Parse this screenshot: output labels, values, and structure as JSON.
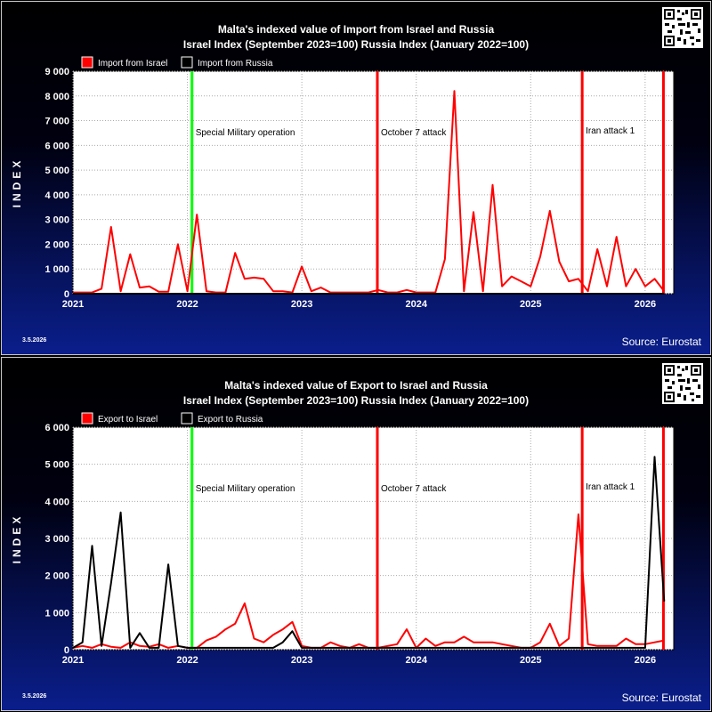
{
  "panels": [
    {
      "title_line1": "Malta's indexed value of Import from Israel and Russia",
      "title_line2": "Israel Index (September 2023=100) Russia Index (January 2022=100)",
      "date": "3.5.2026",
      "source": "Source: Eurostat"
    },
    {
      "title_line1": "Malta's indexed value of Export to Israel and Russia",
      "title_line2": "Israel Index (September 2023=100) Russia Index (January 2022=100)",
      "date": "3.5.2026",
      "source": "Source: Eurostat"
    }
  ],
  "chart_data": [
    {
      "type": "line",
      "title": "Malta's indexed value of Import from Israel and Russia",
      "subtitle": "Israel Index (September 2023=100) Russia Index (January 2022=100)",
      "ylabel": "INDEX",
      "xlabel": "",
      "xlim": [
        2021.0,
        2026.25
      ],
      "ylim": [
        0,
        9000
      ],
      "yticks": [
        0,
        1000,
        2000,
        3000,
        4000,
        5000,
        6000,
        7000,
        8000,
        9000
      ],
      "yticklabels": [
        "0",
        "1 000",
        "2 000",
        "3 000",
        "4 000",
        "5 000",
        "6 000",
        "7 000",
        "8 000",
        "9 000"
      ],
      "xticks": [
        2021,
        2022,
        2023,
        2024,
        2025,
        2026
      ],
      "xticklabels": [
        "2021",
        "2022",
        "2023",
        "2024",
        "2025",
        "2026"
      ],
      "grid": true,
      "legend_placement": "top-left",
      "series": [
        {
          "name": "Import from Israel",
          "color": "#ff0000",
          "x": [
            2021.0,
            2021.083,
            2021.167,
            2021.25,
            2021.333,
            2021.417,
            2021.5,
            2021.583,
            2021.667,
            2021.75,
            2021.833,
            2021.917,
            2022.0,
            2022.083,
            2022.167,
            2022.25,
            2022.333,
            2022.417,
            2022.5,
            2022.583,
            2022.667,
            2022.75,
            2022.833,
            2022.917,
            2023.0,
            2023.083,
            2023.167,
            2023.25,
            2023.333,
            2023.417,
            2023.5,
            2023.583,
            2023.667,
            2023.75,
            2023.833,
            2023.917,
            2024.0,
            2024.083,
            2024.167,
            2024.25,
            2024.333,
            2024.417,
            2024.5,
            2024.583,
            2024.667,
            2024.75,
            2024.833,
            2024.917,
            2025.0,
            2025.083,
            2025.167,
            2025.25,
            2025.333,
            2025.417,
            2025.5,
            2025.583,
            2025.667,
            2025.75,
            2025.833,
            2025.917,
            2026.0,
            2026.083,
            2026.167
          ],
          "y": [
            50,
            50,
            50,
            200,
            2700,
            100,
            1600,
            250,
            300,
            80,
            80,
            2000,
            100,
            3200,
            100,
            50,
            50,
            1650,
            600,
            650,
            600,
            100,
            100,
            50,
            1100,
            100,
            250,
            50,
            50,
            50,
            50,
            50,
            150,
            50,
            50,
            150,
            50,
            50,
            50,
            1400,
            8200,
            100,
            3300,
            100,
            4400,
            300,
            700,
            500,
            300,
            1500,
            3350,
            1300,
            500,
            600,
            100,
            1800,
            300,
            2300,
            300,
            1000,
            300,
            600,
            100
          ]
        },
        {
          "name": "Import from Russia",
          "color": "#000000",
          "x": [
            2021.0,
            2021.5,
            2022.0,
            2022.5,
            2023.0,
            2023.5,
            2024.0,
            2024.5,
            2025.0,
            2025.5,
            2026.0,
            2026.167
          ],
          "y": [
            0,
            0,
            0,
            0,
            0,
            0,
            0,
            0,
            0,
            0,
            0,
            0
          ]
        }
      ],
      "annotations": [
        {
          "label": "Special Military operation",
          "x": 2022.04,
          "color": "#00ff00"
        },
        {
          "label": "October 7 attack",
          "x": 2023.66,
          "color": "#ff0000"
        },
        {
          "label": "Iran attack 1",
          "x": 2025.45,
          "color": "#ff0000"
        },
        {
          "label": "",
          "x": 2026.16,
          "color": "#ff0000"
        }
      ]
    },
    {
      "type": "line",
      "title": "Malta's indexed value of Export to Israel and Russia",
      "subtitle": "Israel Index (September 2023=100) Russia Index (January 2022=100)",
      "ylabel": "INDEX",
      "xlabel": "",
      "xlim": [
        2021.0,
        2026.25
      ],
      "ylim": [
        0,
        6000
      ],
      "yticks": [
        0,
        1000,
        2000,
        3000,
        4000,
        5000,
        6000
      ],
      "yticklabels": [
        "0",
        "1 000",
        "2 000",
        "3 000",
        "4 000",
        "5 000",
        "6 000"
      ],
      "xticks": [
        2021,
        2022,
        2023,
        2024,
        2025,
        2026
      ],
      "xticklabels": [
        "2021",
        "2022",
        "2023",
        "2024",
        "2025",
        "2026"
      ],
      "grid": true,
      "legend_placement": "top-left",
      "series": [
        {
          "name": "Export to Israel",
          "color": "#ff0000",
          "x": [
            2021.0,
            2021.083,
            2021.167,
            2021.25,
            2021.333,
            2021.417,
            2021.5,
            2021.583,
            2021.667,
            2021.75,
            2021.833,
            2021.917,
            2022.0,
            2022.083,
            2022.167,
            2022.25,
            2022.333,
            2022.417,
            2022.5,
            2022.583,
            2022.667,
            2022.75,
            2022.833,
            2022.917,
            2023.0,
            2023.083,
            2023.167,
            2023.25,
            2023.333,
            2023.417,
            2023.5,
            2023.583,
            2023.667,
            2023.75,
            2023.833,
            2023.917,
            2024.0,
            2024.083,
            2024.167,
            2024.25,
            2024.333,
            2024.417,
            2024.5,
            2024.583,
            2024.667,
            2024.75,
            2024.833,
            2024.917,
            2025.0,
            2025.083,
            2025.167,
            2025.25,
            2025.333,
            2025.417,
            2025.5,
            2025.583,
            2025.667,
            2025.75,
            2025.833,
            2025.917,
            2026.0,
            2026.083,
            2026.167
          ],
          "y": [
            50,
            100,
            50,
            150,
            80,
            50,
            200,
            100,
            80,
            150,
            50,
            100,
            50,
            50,
            250,
            350,
            550,
            700,
            1250,
            300,
            200,
            400,
            550,
            750,
            100,
            50,
            50,
            200,
            100,
            50,
            150,
            50,
            50,
            100,
            150,
            550,
            50,
            300,
            100,
            200,
            200,
            350,
            200,
            200,
            200,
            150,
            100,
            50,
            50,
            200,
            700,
            100,
            300,
            3650,
            150,
            100,
            100,
            100,
            300,
            150,
            150,
            200,
            250
          ]
        },
        {
          "name": "Export to Russia",
          "color": "#000000",
          "x": [
            2021.0,
            2021.083,
            2021.167,
            2021.25,
            2021.333,
            2021.417,
            2021.5,
            2021.583,
            2021.667,
            2021.75,
            2021.833,
            2021.917,
            2022.0,
            2022.083,
            2022.167,
            2022.25,
            2022.333,
            2022.417,
            2022.5,
            2022.583,
            2022.667,
            2022.75,
            2022.833,
            2022.917,
            2023.0,
            2023.083,
            2023.167,
            2023.25,
            2023.333,
            2023.417,
            2023.5,
            2023.583,
            2023.667,
            2023.75,
            2023.833,
            2023.917,
            2024.0,
            2024.083,
            2024.167,
            2024.25,
            2024.333,
            2024.417,
            2024.5,
            2024.583,
            2024.667,
            2024.75,
            2024.833,
            2024.917,
            2025.0,
            2025.083,
            2025.167,
            2025.25,
            2025.333,
            2025.417,
            2025.5,
            2025.583,
            2025.667,
            2025.75,
            2025.833,
            2025.917,
            2026.0,
            2026.083,
            2026.167
          ],
          "y": [
            50,
            200,
            2800,
            100,
            1800,
            3700,
            50,
            450,
            50,
            50,
            2300,
            100,
            50,
            50,
            50,
            50,
            50,
            50,
            50,
            50,
            50,
            50,
            200,
            500,
            50,
            50,
            50,
            50,
            50,
            50,
            50,
            50,
            50,
            50,
            50,
            50,
            50,
            50,
            50,
            50,
            50,
            50,
            50,
            50,
            50,
            50,
            50,
            50,
            50,
            50,
            50,
            50,
            50,
            50,
            50,
            50,
            50,
            50,
            50,
            50,
            50,
            5200,
            1300
          ]
        }
      ],
      "annotations": [
        {
          "label": "Special Military operation",
          "x": 2022.04,
          "color": "#00ff00"
        },
        {
          "label": "October 7 attack",
          "x": 2023.66,
          "color": "#ff0000"
        },
        {
          "label": "Iran attack 1",
          "x": 2025.45,
          "color": "#ff0000"
        },
        {
          "label": "",
          "x": 2026.16,
          "color": "#ff0000"
        }
      ]
    }
  ]
}
